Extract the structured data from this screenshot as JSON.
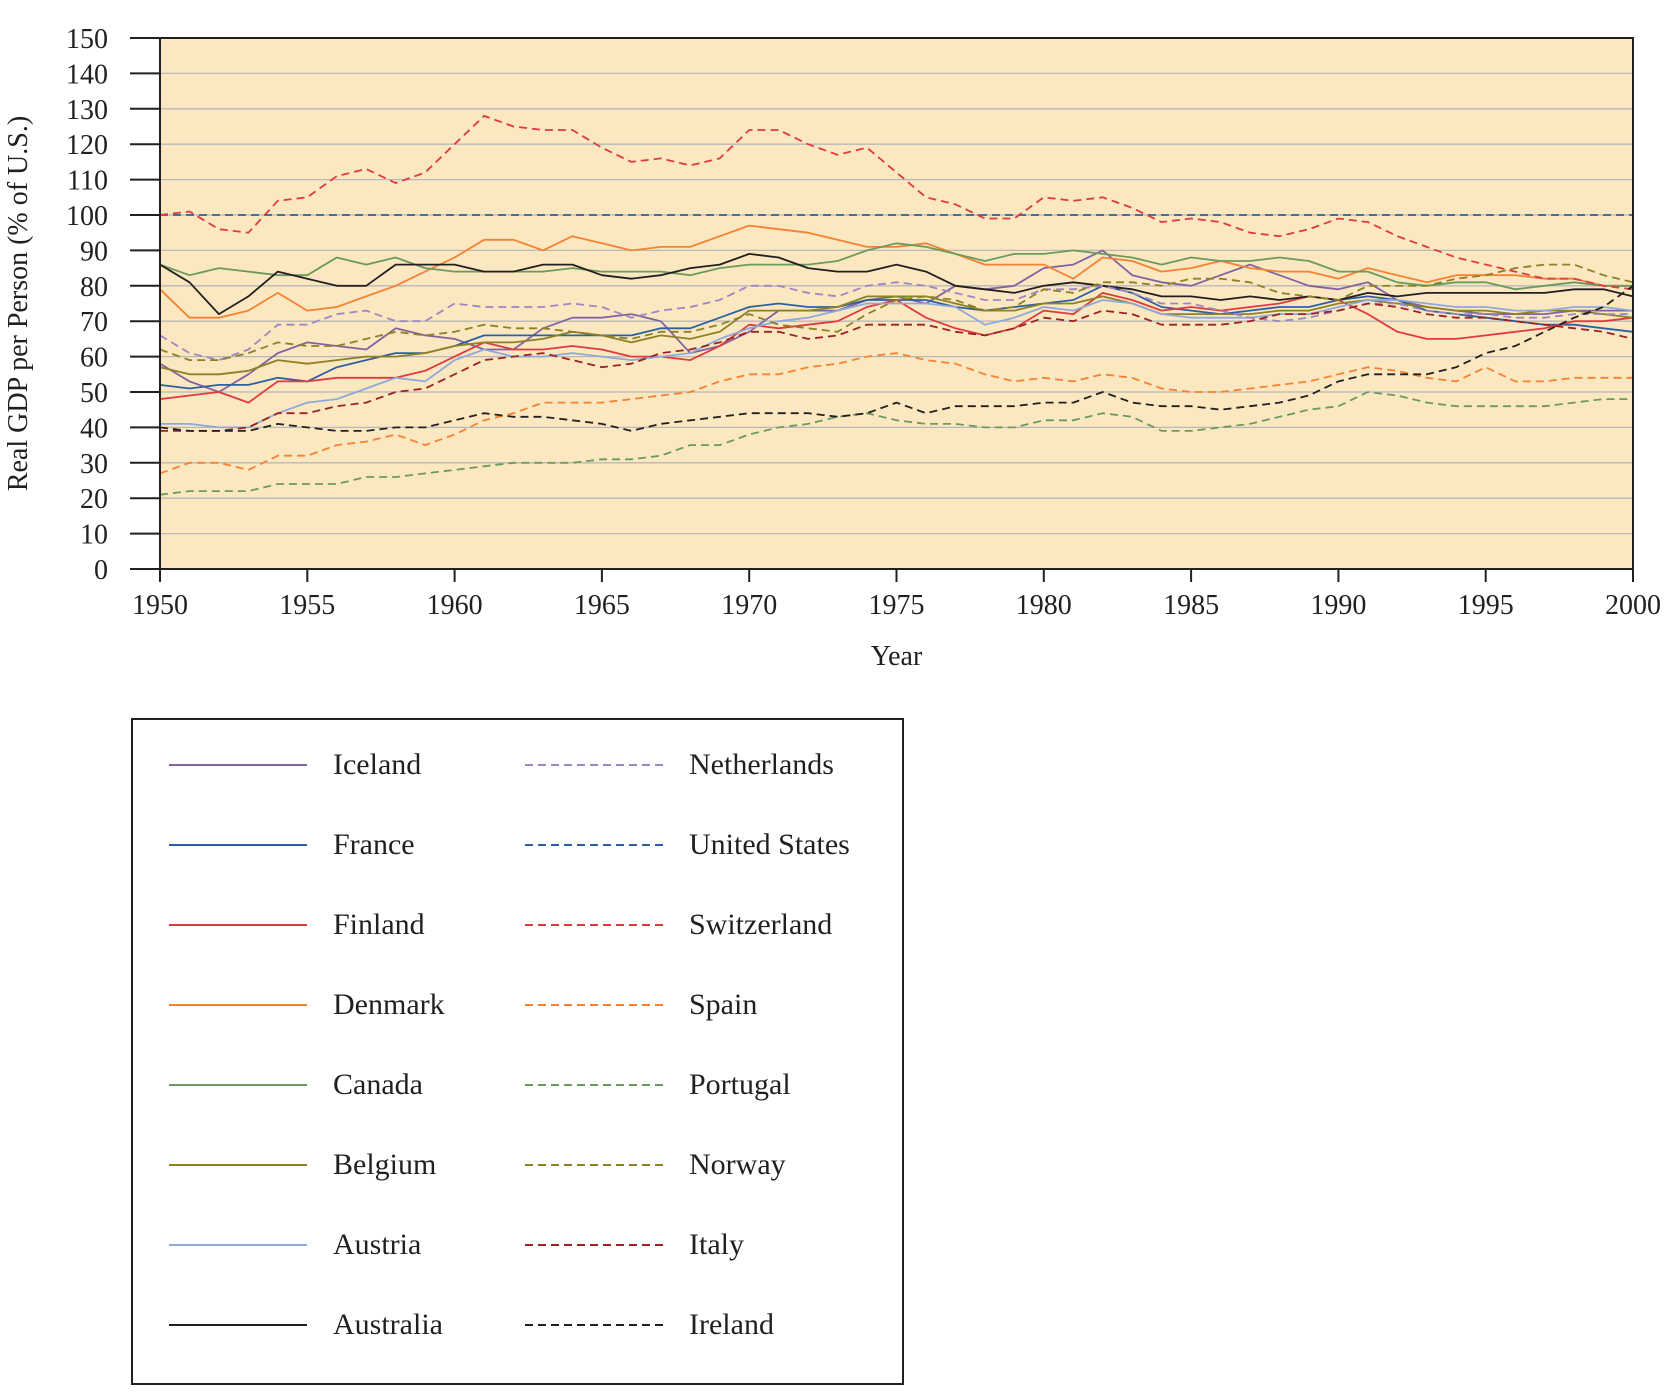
{
  "chart_data": {
    "type": "line",
    "title": "",
    "xlabel": "Year",
    "ylabel": "Real GDP per Person (% of U.S.)",
    "xlim": [
      1950,
      2000
    ],
    "ylim": [
      0,
      150
    ],
    "x_ticks": [
      1950,
      1955,
      1960,
      1965,
      1970,
      1975,
      1980,
      1985,
      1990,
      1995,
      2000
    ],
    "y_ticks": [
      0,
      10,
      20,
      30,
      40,
      50,
      60,
      70,
      80,
      90,
      100,
      110,
      120,
      130,
      140,
      150
    ],
    "grid": "horizontal",
    "background_color": "#fbe8c0",
    "legend_position": "below-left",
    "x": [
      1950,
      1951,
      1952,
      1953,
      1954,
      1955,
      1956,
      1957,
      1958,
      1959,
      1960,
      1961,
      1962,
      1963,
      1964,
      1965,
      1966,
      1967,
      1968,
      1969,
      1970,
      1971,
      1972,
      1973,
      1974,
      1975,
      1976,
      1977,
      1978,
      1979,
      1980,
      1981,
      1982,
      1983,
      1984,
      1985,
      1986,
      1987,
      1988,
      1989,
      1990,
      1991,
      1992,
      1993,
      1994,
      1995,
      1996,
      1997,
      1998,
      1999,
      2000
    ],
    "series": [
      {
        "name": "Iceland",
        "color": "#8064a2",
        "dash": "solid",
        "values": [
          58,
          53,
          50,
          55,
          61,
          64,
          63,
          62,
          68,
          66,
          65,
          62,
          62,
          68,
          71,
          71,
          72,
          70,
          61,
          63,
          67,
          73,
          73,
          73,
          76,
          77,
          75,
          80,
          79,
          80,
          85,
          86,
          90,
          83,
          81,
          80,
          83,
          86,
          83,
          80,
          79,
          81,
          76,
          74,
          73,
          72,
          72,
          72,
          73,
          73,
          73
        ]
      },
      {
        "name": "France",
        "color": "#2e5fa1",
        "dash": "solid",
        "values": [
          52,
          51,
          52,
          52,
          54,
          53,
          57,
          59,
          61,
          61,
          63,
          66,
          66,
          66,
          66,
          66,
          66,
          68,
          68,
          71,
          74,
          75,
          74,
          74,
          76,
          76,
          76,
          74,
          73,
          74,
          75,
          76,
          80,
          78,
          74,
          73,
          72,
          73,
          74,
          74,
          76,
          77,
          76,
          73,
          72,
          71,
          70,
          69,
          69,
          68,
          67
        ]
      },
      {
        "name": "Finland",
        "color": "#e03a3e",
        "dash": "solid",
        "values": [
          48,
          49,
          50,
          47,
          53,
          53,
          54,
          54,
          54,
          56,
          60,
          64,
          62,
          62,
          63,
          62,
          60,
          60,
          59,
          63,
          69,
          68,
          69,
          70,
          74,
          76,
          71,
          68,
          66,
          68,
          73,
          72,
          78,
          76,
          73,
          74,
          73,
          74,
          75,
          77,
          76,
          72,
          67,
          65,
          65,
          66,
          67,
          68,
          70,
          70,
          71
        ]
      },
      {
        "name": "Denmark",
        "color": "#f58233",
        "dash": "solid",
        "values": [
          79,
          71,
          71,
          73,
          78,
          73,
          74,
          77,
          80,
          84,
          88,
          93,
          93,
          90,
          94,
          92,
          90,
          91,
          91,
          94,
          97,
          96,
          95,
          93,
          91,
          91,
          92,
          89,
          86,
          86,
          86,
          82,
          88,
          87,
          84,
          85,
          87,
          85,
          84,
          84,
          82,
          85,
          83,
          81,
          83,
          83,
          83,
          82,
          82,
          80,
          80
        ]
      },
      {
        "name": "Canada",
        "color": "#6a9a5d",
        "dash": "solid",
        "values": [
          86,
          83,
          85,
          84,
          83,
          83,
          88,
          86,
          88,
          85,
          84,
          84,
          84,
          84,
          85,
          84,
          84,
          84,
          83,
          85,
          86,
          86,
          86,
          87,
          90,
          92,
          91,
          89,
          87,
          89,
          89,
          90,
          89,
          88,
          86,
          88,
          87,
          87,
          88,
          87,
          84,
          84,
          81,
          80,
          81,
          81,
          79,
          80,
          81,
          80,
          80
        ]
      },
      {
        "name": "Belgium",
        "color": "#8b8225",
        "dash": "solid",
        "values": [
          57,
          55,
          55,
          56,
          59,
          58,
          59,
          60,
          60,
          61,
          63,
          64,
          64,
          65,
          67,
          66,
          64,
          66,
          65,
          67,
          73,
          73,
          73,
          74,
          77,
          77,
          77,
          75,
          73,
          73,
          75,
          75,
          77,
          75,
          72,
          72,
          72,
          72,
          73,
          73,
          75,
          76,
          75,
          74,
          73,
          73,
          72,
          73,
          73,
          72,
          71
        ]
      },
      {
        "name": "Austria",
        "color": "#8ea9db",
        "dash": "solid",
        "values": [
          41,
          41,
          40,
          40,
          44,
          47,
          48,
          51,
          54,
          53,
          59,
          62,
          60,
          60,
          61,
          60,
          59,
          60,
          61,
          65,
          68,
          70,
          71,
          73,
          75,
          75,
          75,
          74,
          69,
          71,
          74,
          73,
          76,
          75,
          72,
          71,
          71,
          71,
          72,
          72,
          74,
          76,
          76,
          75,
          74,
          74,
          73,
          73,
          74,
          74,
          73
        ]
      },
      {
        "name": "Australia",
        "color": "#231f20",
        "dash": "solid",
        "values": [
          86,
          81,
          72,
          77,
          84,
          82,
          80,
          80,
          86,
          86,
          86,
          84,
          84,
          86,
          86,
          83,
          82,
          83,
          85,
          86,
          89,
          88,
          85,
          84,
          84,
          86,
          84,
          80,
          79,
          78,
          80,
          81,
          80,
          79,
          77,
          77,
          76,
          77,
          76,
          77,
          76,
          78,
          77,
          78,
          78,
          78,
          78,
          78,
          79,
          79,
          77
        ]
      },
      {
        "name": "Netherlands",
        "color": "#9d86c4",
        "dash": "dashed",
        "values": [
          66,
          61,
          59,
          62,
          69,
          69,
          72,
          73,
          70,
          70,
          75,
          74,
          74,
          74,
          75,
          74,
          71,
          73,
          74,
          76,
          80,
          80,
          78,
          77,
          80,
          81,
          80,
          78,
          76,
          76,
          79,
          79,
          80,
          78,
          75,
          75,
          73,
          71,
          70,
          71,
          73,
          75,
          75,
          73,
          72,
          72,
          71,
          71,
          72,
          72,
          72
        ]
      },
      {
        "name": "United States",
        "color": "#2e5fa1",
        "dash": "dashed",
        "values": [
          100,
          100,
          100,
          100,
          100,
          100,
          100,
          100,
          100,
          100,
          100,
          100,
          100,
          100,
          100,
          100,
          100,
          100,
          100,
          100,
          100,
          100,
          100,
          100,
          100,
          100,
          100,
          100,
          100,
          100,
          100,
          100,
          100,
          100,
          100,
          100,
          100,
          100,
          100,
          100,
          100,
          100,
          100,
          100,
          100,
          100,
          100,
          100,
          100,
          100,
          100
        ]
      },
      {
        "name": "Switzerland",
        "color": "#e03a3e",
        "dash": "dashed",
        "values": [
          100,
          101,
          96,
          95,
          104,
          105,
          111,
          113,
          109,
          112,
          120,
          128,
          125,
          124,
          124,
          119,
          115,
          116,
          114,
          116,
          124,
          124,
          120,
          117,
          119,
          112,
          105,
          103,
          99,
          99,
          105,
          104,
          105,
          102,
          98,
          99,
          98,
          95,
          94,
          96,
          99,
          98,
          94,
          91,
          88,
          86,
          84,
          82,
          82,
          80,
          79
        ]
      },
      {
        "name": "Spain",
        "color": "#f58233",
        "dash": "dashed",
        "values": [
          27,
          30,
          30,
          28,
          32,
          32,
          35,
          36,
          38,
          35,
          38,
          42,
          44,
          47,
          47,
          47,
          48,
          49,
          50,
          53,
          55,
          55,
          57,
          58,
          60,
          61,
          59,
          58,
          55,
          53,
          54,
          53,
          55,
          54,
          51,
          50,
          50,
          51,
          52,
          53,
          55,
          57,
          56,
          54,
          53,
          57,
          53,
          53,
          54,
          54,
          54
        ]
      },
      {
        "name": "Portugal",
        "color": "#6a9a5d",
        "dash": "dashed",
        "values": [
          21,
          22,
          22,
          22,
          24,
          24,
          24,
          26,
          26,
          27,
          28,
          29,
          30,
          30,
          30,
          31,
          31,
          32,
          35,
          35,
          38,
          40,
          41,
          43,
          44,
          42,
          41,
          41,
          40,
          40,
          42,
          42,
          44,
          43,
          39,
          39,
          40,
          41,
          43,
          45,
          46,
          50,
          49,
          47,
          46,
          46,
          46,
          46,
          47,
          48,
          48
        ]
      },
      {
        "name": "Norway",
        "color": "#8b8225",
        "dash": "dashed",
        "values": [
          62,
          59,
          59,
          61,
          64,
          63,
          63,
          65,
          67,
          66,
          67,
          69,
          68,
          68,
          67,
          66,
          65,
          67,
          67,
          69,
          72,
          69,
          68,
          67,
          72,
          76,
          77,
          76,
          73,
          74,
          79,
          78,
          81,
          81,
          80,
          82,
          82,
          81,
          78,
          77,
          76,
          80,
          80,
          80,
          82,
          83,
          85,
          86,
          86,
          83,
          81
        ]
      },
      {
        "name": "Italy",
        "color": "#9b2226",
        "dash": "dashed",
        "values": [
          39,
          39,
          39,
          40,
          44,
          44,
          46,
          47,
          50,
          51,
          55,
          59,
          60,
          61,
          59,
          57,
          58,
          61,
          62,
          64,
          67,
          67,
          65,
          66,
          69,
          69,
          69,
          67,
          66,
          68,
          71,
          70,
          73,
          72,
          69,
          69,
          69,
          70,
          72,
          72,
          73,
          75,
          74,
          72,
          71,
          71,
          70,
          69,
          68,
          67,
          65
        ]
      },
      {
        "name": "Ireland",
        "color": "#231f20",
        "dash": "dashed",
        "values": [
          40,
          39,
          39,
          39,
          41,
          40,
          39,
          39,
          40,
          40,
          42,
          44,
          43,
          43,
          42,
          41,
          39,
          41,
          42,
          43,
          44,
          44,
          44,
          43,
          44,
          47,
          44,
          46,
          46,
          46,
          47,
          47,
          50,
          47,
          46,
          46,
          45,
          46,
          47,
          49,
          53,
          55,
          55,
          55,
          57,
          61,
          63,
          67,
          71,
          74,
          80
        ]
      }
    ]
  }
}
